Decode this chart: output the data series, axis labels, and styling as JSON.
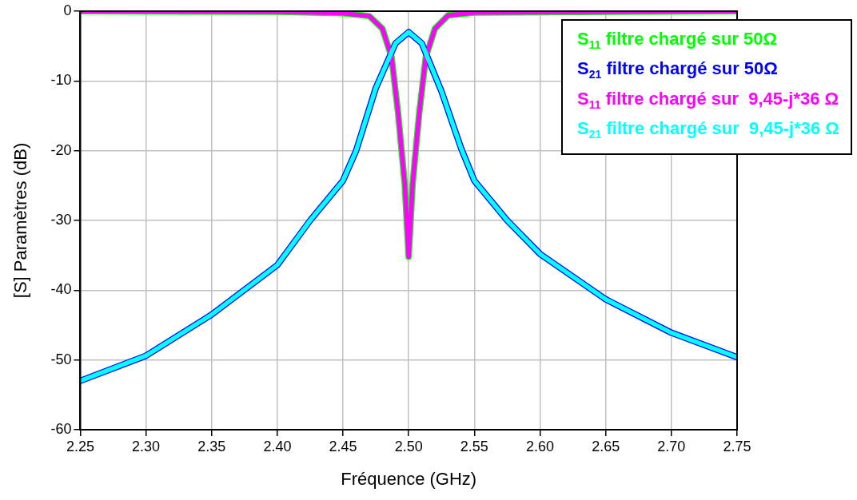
{
  "chart_data": {
    "type": "line",
    "xlabel": "Fréquence (GHz)",
    "ylabel": "[S] Paramètres (dB)",
    "xlim": [
      2.25,
      2.75
    ],
    "xticks": [
      {
        "value": 2.25,
        "label": "2.25"
      },
      {
        "value": 2.3,
        "label": "2.30"
      },
      {
        "value": 2.35,
        "label": "2.35"
      },
      {
        "value": 2.4,
        "label": "2.40"
      },
      {
        "value": 2.45,
        "label": "2.45"
      },
      {
        "value": 2.5,
        "label": "2.50"
      },
      {
        "value": 2.55,
        "label": "2.55"
      },
      {
        "value": 2.6,
        "label": "2.60"
      },
      {
        "value": 2.65,
        "label": "2.65"
      },
      {
        "value": 2.7,
        "label": "2.70"
      },
      {
        "value": 2.75,
        "label": "2.75"
      }
    ],
    "ylim": [
      -60,
      0
    ],
    "yticks": [
      -60,
      -50,
      -40,
      -30,
      -20,
      -10,
      0
    ],
    "grid": true,
    "legend": "top right",
    "marker": "none",
    "line_style": "solid",
    "series": [
      {
        "name": "S$_{11}$ filtre chargé sur 50Ω",
        "color": "#00ff00",
        "x": [
          2.25,
          2.4,
          2.45,
          2.47,
          2.48,
          2.487,
          2.492,
          2.497,
          2.5,
          2.503,
          2.508,
          2.513,
          2.52,
          2.53,
          2.55,
          2.75
        ],
        "values": [
          0,
          -0.1,
          -0.3,
          -0.7,
          -2.5,
          -6.6,
          -14.7,
          -24.8,
          -35.2,
          -24.8,
          -14.7,
          -6.6,
          -2.5,
          -0.6,
          -0.2,
          0
        ]
      },
      {
        "name": "S$_{21}$ filtre chargé sur 50Ω",
        "color": "#0000ff",
        "x": [
          2.25,
          2.3,
          2.35,
          2.4,
          2.425,
          2.45,
          2.46,
          2.475,
          2.49,
          2.5,
          2.51,
          2.525,
          2.54,
          2.55,
          2.575,
          2.6,
          2.65,
          2.7,
          2.75
        ],
        "values": [
          -53,
          -49.4,
          -43.5,
          -36.4,
          -30,
          -24.3,
          -20,
          -11,
          -4.6,
          -3,
          -4.6,
          -11.5,
          -19.7,
          -24.3,
          -30,
          -34.8,
          -41.3,
          -46.1,
          -49.6
        ]
      },
      {
        "name": "S$_{11}$ filtre chargé sur  9,45-j*36 Ω",
        "color": "#ff00ff",
        "x": [
          2.25,
          2.4,
          2.45,
          2.47,
          2.48,
          2.487,
          2.492,
          2.497,
          2.5,
          2.503,
          2.508,
          2.513,
          2.52,
          2.53,
          2.55,
          2.75
        ],
        "values": [
          0,
          -0.1,
          -0.3,
          -0.7,
          -2.5,
          -6.6,
          -14.7,
          -24.8,
          -35.2,
          -24.8,
          -14.7,
          -6.6,
          -2.5,
          -0.6,
          -0.2,
          0
        ]
      },
      {
        "name": "S$_{21}$ filtre chargé sur  9,45-j*36 Ω",
        "color": "#00ffff",
        "x": [
          2.25,
          2.3,
          2.35,
          2.4,
          2.425,
          2.45,
          2.46,
          2.475,
          2.49,
          2.5,
          2.51,
          2.525,
          2.54,
          2.55,
          2.575,
          2.6,
          2.65,
          2.7,
          2.75
        ],
        "values": [
          -53,
          -49.4,
          -43.5,
          -36.4,
          -30,
          -24.3,
          -20,
          -11,
          -4.6,
          -3,
          -4.6,
          -11.5,
          -19.7,
          -24.3,
          -30,
          -34.8,
          -41.3,
          -46.1,
          -49.6
        ]
      }
    ]
  }
}
